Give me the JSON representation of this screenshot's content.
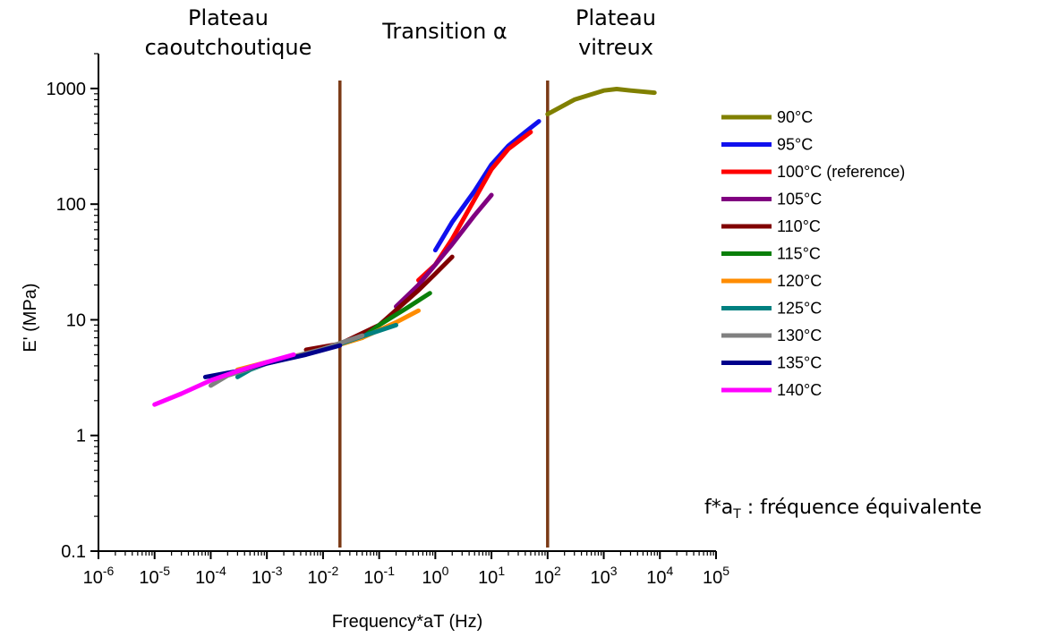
{
  "chart_data": {
    "type": "line",
    "xlabel": "Frequency*aT (Hz)",
    "ylabel": "E' (MPa)",
    "xscale": "log",
    "yscale": "log",
    "xlim": [
      1e-06,
      100000.0
    ],
    "ylim": [
      0.1,
      2000
    ],
    "x_ticks": [
      {
        "base": "10",
        "exp": "-6"
      },
      {
        "base": "10",
        "exp": "-5"
      },
      {
        "base": "10",
        "exp": "-4"
      },
      {
        "base": "10",
        "exp": "-3"
      },
      {
        "base": "10",
        "exp": "-2"
      },
      {
        "base": "10",
        "exp": "-1"
      },
      {
        "base": "10",
        "exp": "0"
      },
      {
        "base": "10",
        "exp": "1"
      },
      {
        "base": "10",
        "exp": "2"
      },
      {
        "base": "10",
        "exp": "3"
      },
      {
        "base": "10",
        "exp": "4"
      },
      {
        "base": "10",
        "exp": "5"
      }
    ],
    "y_ticks": [
      "0.1",
      "1",
      "10",
      "100",
      "1000"
    ],
    "y_tick_values": [
      0.1,
      1,
      10,
      100,
      1000
    ],
    "vertical_lines": [
      0.02,
      100
    ],
    "vertical_line_color": "#7b3a16",
    "regions": [
      {
        "lines": [
          "Plateau",
          "caoutchoutique"
        ]
      },
      {
        "lines": [
          "Transition α"
        ]
      },
      {
        "lines": [
          "Plateau",
          "vitreux"
        ]
      }
    ],
    "annotation": {
      "main": "f*a",
      "sub": "T",
      "rest": " : fréquence équivalente"
    },
    "legend_position": "right",
    "grid": false,
    "series": [
      {
        "name": "90°C",
        "color": "#808000",
        "x": [
          100,
          300,
          1000,
          1700,
          3000,
          8000
        ],
        "y": [
          600,
          800,
          960,
          990,
          960,
          920
        ]
      },
      {
        "name": "95°C",
        "color": "#1010ee",
        "x": [
          1,
          2,
          5,
          10,
          20,
          40,
          70
        ],
        "y": [
          40,
          70,
          130,
          220,
          320,
          420,
          520
        ]
      },
      {
        "name": "100°C (reference)",
        "color": "#ff0000",
        "x": [
          0.5,
          1,
          2,
          5,
          10,
          20,
          50
        ],
        "y": [
          22,
          30,
          50,
          110,
          200,
          300,
          420
        ]
      },
      {
        "name": "105°C",
        "color": "#800080",
        "x": [
          0.2,
          0.5,
          1,
          2,
          5,
          10
        ],
        "y": [
          13,
          20,
          30,
          45,
          80,
          120
        ]
      },
      {
        "name": "110°C",
        "color": "#800000",
        "x": [
          0.005,
          0.02,
          0.1,
          0.5,
          1,
          2
        ],
        "y": [
          5.5,
          6.2,
          9,
          18,
          25,
          35
        ]
      },
      {
        "name": "115°C",
        "color": "#0a7f0a",
        "x": [
          0.01,
          0.05,
          0.1,
          0.3,
          0.8
        ],
        "y": [
          5.6,
          7,
          9,
          12.5,
          17
        ]
      },
      {
        "name": "120°C",
        "color": "#ff8c00",
        "x": [
          0.0003,
          0.001,
          0.01,
          0.05,
          0.2,
          0.5
        ],
        "y": [
          3.7,
          4.3,
          5.5,
          7,
          9.5,
          12
        ]
      },
      {
        "name": "125°C",
        "color": "#008080",
        "x": [
          0.0003,
          0.0005,
          0.001,
          0.01,
          0.05,
          0.2
        ],
        "y": [
          3.2,
          3.7,
          4.2,
          5.5,
          7.2,
          9
        ]
      },
      {
        "name": "130°C",
        "color": "#808080",
        "x": [
          0.0001,
          0.0002,
          0.001,
          0.01,
          0.05
        ],
        "y": [
          2.7,
          3.3,
          4.2,
          5.6,
          7.3
        ]
      },
      {
        "name": "135°C",
        "color": "#00008b",
        "x": [
          8e-05,
          0.0003,
          0.001,
          0.005,
          0.02
        ],
        "y": [
          3.2,
          3.6,
          4.2,
          5,
          6
        ]
      },
      {
        "name": "140°C",
        "color": "#ff00ff",
        "x": [
          1e-05,
          3e-05,
          0.0001,
          0.0003,
          0.001,
          0.003
        ],
        "y": [
          1.85,
          2.3,
          3.0,
          3.6,
          4.3,
          5.0
        ]
      }
    ]
  }
}
